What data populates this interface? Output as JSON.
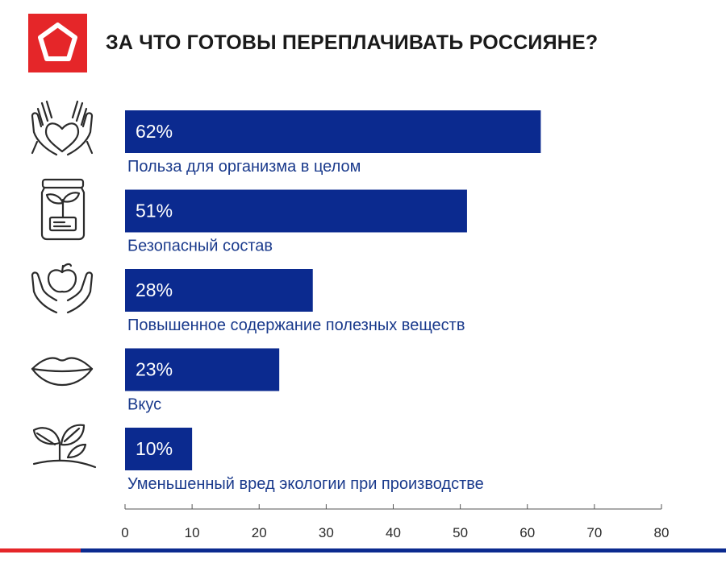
{
  "header": {
    "title": "ЗА ЧТО ГОТОВЫ ПЕРЕПЛАЧИВАТЬ РОССИЯНЕ?",
    "logo_icon": "pentagon-logo-icon"
  },
  "colors": {
    "brand_red": "#e52629",
    "bar_blue": "#0b2a8f",
    "label_blue": "#1a3a8c"
  },
  "chart_data": {
    "type": "bar",
    "orientation": "horizontal",
    "title": "ЗА ЧТО ГОТОВЫ ПЕРЕПЛАЧИВАТЬ РОССИЯНЕ?",
    "categories": [
      "Польза для организма в целом",
      "Безопасный состав",
      "Повышенное содержание полезных веществ",
      "Вкус",
      "Уменьшенный вред экологии при производстве"
    ],
    "values": [
      62,
      51,
      28,
      23,
      10
    ],
    "value_labels": [
      "62%",
      "51%",
      "28%",
      "23%",
      "10%"
    ],
    "icons": [
      "hands-heart-icon",
      "jar-sprout-icon",
      "hands-apple-icon",
      "lips-icon",
      "leaves-icon"
    ],
    "xlim": [
      0,
      80
    ],
    "xticks": [
      0,
      10,
      20,
      30,
      40,
      50,
      60,
      70,
      80
    ],
    "xlabel": "",
    "ylabel": "",
    "grid": false
  }
}
